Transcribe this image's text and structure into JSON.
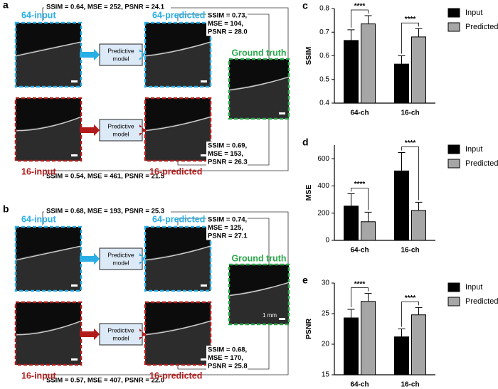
{
  "panels": [
    {
      "label": "a",
      "input64": "64-input",
      "pred64": "64-predicted",
      "input16": "16-input",
      "pred16": "16-predicted",
      "ground_truth": "Ground truth",
      "model_64": [
        "Predictive",
        "model"
      ],
      "model_16": [
        "Predictive",
        "model"
      ],
      "metrics_input64": "SSIM = 0.64, MSE = 252, PSNR = 24.1",
      "metrics_pred64": [
        "SSIM = 0.73,",
        "MSE = 104,",
        "PSNR = 28.0"
      ],
      "metrics_pred16": [
        "SSIM = 0.69,",
        "MSE = 153,",
        "PSNR = 26.3"
      ],
      "metrics_input16": "SSIM = 0.54, MSE = 461, PSNR = 21.5"
    },
    {
      "label": "b",
      "input64": "64-input",
      "pred64": "64-predicted",
      "input16": "16-input",
      "pred16": "16-predicted",
      "ground_truth": "Ground truth",
      "model_64": [
        "Predictive",
        "model"
      ],
      "model_16": [
        "Predictive",
        "model"
      ],
      "metrics_input64": "SSIM = 0.68, MSE = 193, PSNR = 25.3",
      "metrics_pred64": [
        "SSIM = 0.74,",
        "MSE = 125,",
        "PSNR = 27.1"
      ],
      "metrics_pred16": [
        "SSIM = 0.68,",
        "MSE = 170,",
        "PSNR = 25.8"
      ],
      "metrics_input16": "SSIM = 0.57, MSE = 407, PSNR = 22.0",
      "scale_bar": "1 mm"
    }
  ],
  "chart_data": [
    {
      "type": "bar",
      "panel_label": "c",
      "y_label": "SSIM",
      "categories": [
        "64-ch",
        "16-ch"
      ],
      "series": [
        {
          "name": "Input",
          "color": "#000000",
          "values": [
            0.665,
            0.565
          ],
          "errors": [
            0.045,
            0.035
          ]
        },
        {
          "name": "Predicted",
          "color": "#a6a6a6",
          "values": [
            0.735,
            0.68
          ],
          "errors": [
            0.035,
            0.035
          ]
        }
      ],
      "ylim": [
        0.4,
        0.8
      ],
      "yticks": [
        0.4,
        0.5,
        0.6,
        0.7,
        0.8
      ],
      "significance": [
        "****",
        "****"
      ]
    },
    {
      "type": "bar",
      "panel_label": "d",
      "y_label": "MSE",
      "categories": [
        "64-ch",
        "16-ch"
      ],
      "series": [
        {
          "name": "Input",
          "color": "#000000",
          "values": [
            252,
            510
          ],
          "errors": [
            90,
            135
          ]
        },
        {
          "name": "Predicted",
          "color": "#a6a6a6",
          "values": [
            137,
            220
          ],
          "errors": [
            70,
            60
          ]
        }
      ],
      "ylim": [
        0,
        700
      ],
      "yticks": [
        0,
        200,
        400,
        600
      ],
      "significance": [
        "****",
        "****"
      ]
    },
    {
      "type": "bar",
      "panel_label": "e",
      "y_label": "PSNR",
      "categories": [
        "64-ch",
        "16-ch"
      ],
      "series": [
        {
          "name": "Input",
          "color": "#000000",
          "values": [
            24.3,
            21.2
          ],
          "errors": [
            1.4,
            1.3
          ]
        },
        {
          "name": "Predicted",
          "color": "#a6a6a6",
          "values": [
            27.0,
            24.8
          ],
          "errors": [
            1.3,
            1.2
          ]
        }
      ],
      "ylim": [
        15,
        30
      ],
      "yticks": [
        15,
        20,
        25,
        30
      ],
      "significance": [
        "****",
        "****"
      ]
    }
  ]
}
